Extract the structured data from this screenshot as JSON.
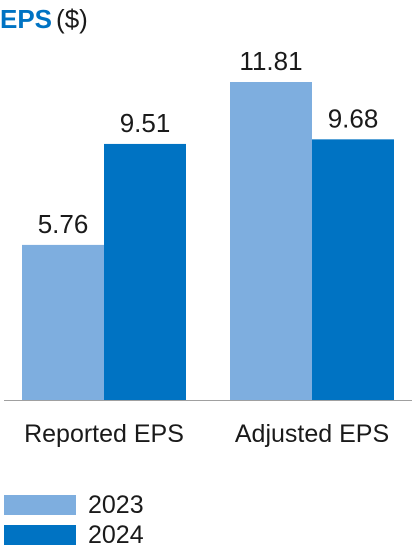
{
  "chart_data": {
    "type": "bar",
    "title": "EPS",
    "unit": "($)",
    "categories": [
      "Reported EPS",
      "Adjusted EPS"
    ],
    "series": [
      {
        "name": "2023",
        "values": [
          5.76,
          11.81
        ],
        "labels": [
          "5.76",
          "11.81"
        ],
        "color": "#7EAEDF"
      },
      {
        "name": "2024",
        "values": [
          9.51,
          9.68
        ],
        "labels": [
          "9.51",
          "9.68"
        ],
        "color": "#0073C3"
      }
    ],
    "ymin": 0,
    "ymax": 11.81,
    "grid": false,
    "legend_position": "bottom-left",
    "axis_color": "#a0a0a0"
  }
}
